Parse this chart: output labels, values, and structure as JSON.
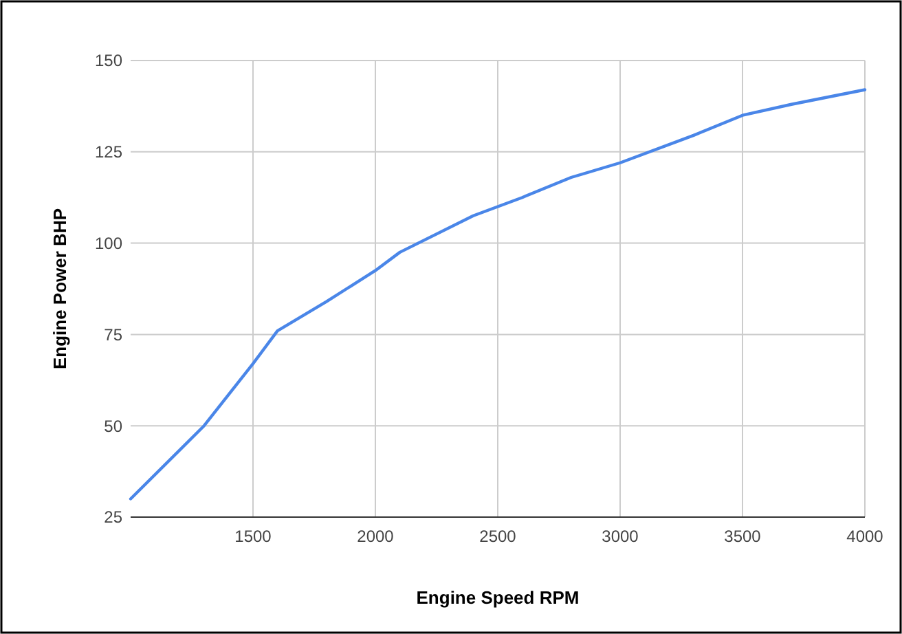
{
  "chart_data": {
    "type": "line",
    "xlabel": "Engine Speed RPM",
    "ylabel": "Engine Power BHP",
    "x": [
      1000,
      1300,
      1500,
      1600,
      1800,
      2000,
      2100,
      2400,
      2600,
      2800,
      3000,
      3300,
      3500,
      3700,
      4000
    ],
    "series": [
      {
        "color": "#4a86e8",
        "values": [
          30,
          50,
          67,
          76,
          84,
          92.5,
          97.5,
          107.5,
          112.5,
          118,
          122,
          129.5,
          135,
          138,
          142
        ]
      }
    ],
    "xlim": [
      1000,
      4000
    ],
    "xticks": [
      1500,
      2000,
      2500,
      3000,
      3500,
      4000
    ],
    "ylim": [
      25,
      150
    ],
    "yticks": [
      25,
      50,
      75,
      100,
      125,
      150
    ],
    "grid": true,
    "marker": "none",
    "line_style": "solid"
  }
}
